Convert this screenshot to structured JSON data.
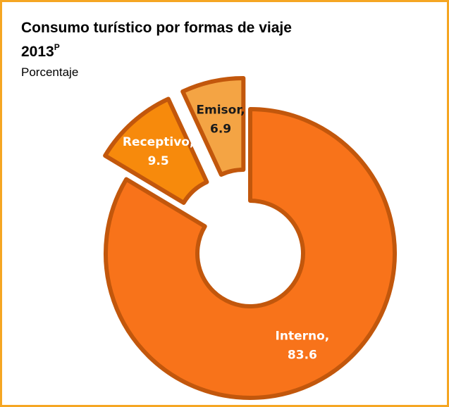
{
  "chart_data": {
    "type": "donut",
    "title": "Consumo turístico por formas de viaje",
    "title_year": "2013",
    "title_superscript": "P",
    "subtitle": "Porcentaje",
    "categories": [
      "Interno,",
      "Receptivo,",
      "Emisor,"
    ],
    "values": [
      83.6,
      9.5,
      6.9
    ],
    "colors": [
      "#f8731a",
      "#f78a0c",
      "#f4a444"
    ],
    "label_colors": [
      "#ffffff",
      "#ffffff",
      "#1a1a1a"
    ],
    "exploded": [
      false,
      true,
      true
    ]
  }
}
